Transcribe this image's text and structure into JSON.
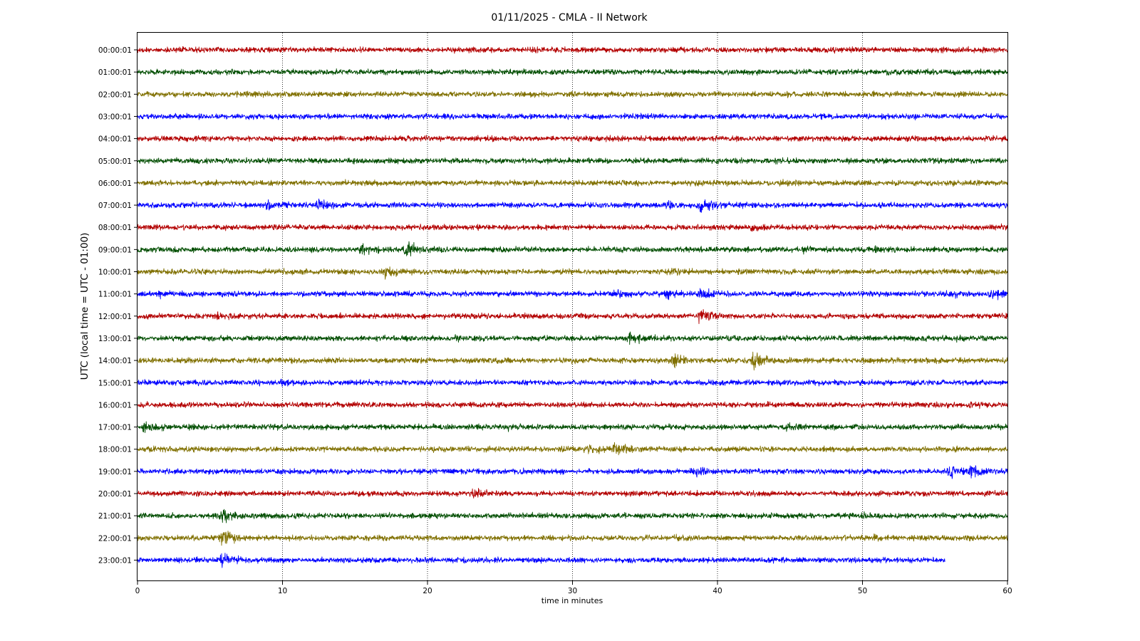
{
  "chart_data": {
    "type": "line",
    "title": "01/11/2025 - CMLA - II Network",
    "xlabel": "time in minutes",
    "ylabel": "UTC (local time = UTC - 01:00)",
    "xlim": [
      0,
      60
    ],
    "xticks": [
      0,
      10,
      20,
      30,
      40,
      50,
      60
    ],
    "grid": "vertical dotted lines at each 10 minutes",
    "trace_colors": [
      "#b30000",
      "#004d00",
      "#807000",
      "#0000ff"
    ],
    "series": [
      {
        "label": "00:00:01",
        "x_end": 60,
        "events": [
          {
            "x": 48,
            "amp": 1.3
          }
        ]
      },
      {
        "label": "01:00:01",
        "x_end": 60,
        "events": []
      },
      {
        "label": "02:00:01",
        "x_end": 60,
        "events": [
          {
            "x": 36,
            "amp": 1.2
          }
        ]
      },
      {
        "label": "03:00:01",
        "x_end": 60,
        "events": [
          {
            "x": 51,
            "amp": 1.3
          }
        ]
      },
      {
        "label": "04:00:01",
        "x_end": 60,
        "events": []
      },
      {
        "label": "05:00:01",
        "x_end": 60,
        "events": [
          {
            "x": 54.5,
            "amp": 1.3
          }
        ]
      },
      {
        "label": "06:00:01",
        "x_end": 60,
        "events": [
          {
            "x": 16.5,
            "amp": 1.2
          },
          {
            "x": 44,
            "amp": 1.3
          }
        ]
      },
      {
        "label": "07:00:01",
        "x_end": 60,
        "events": [
          {
            "x": 9,
            "amp": 2.4
          },
          {
            "x": 12.5,
            "amp": 2.8
          },
          {
            "x": 36.5,
            "amp": 2.0
          },
          {
            "x": 38.8,
            "amp": 3.4
          },
          {
            "x": 41.5,
            "amp": 1.8
          }
        ]
      },
      {
        "label": "08:00:01",
        "x_end": 60,
        "events": [
          {
            "x": 42.5,
            "amp": 1.8
          },
          {
            "x": 59,
            "amp": 1.4
          }
        ]
      },
      {
        "label": "09:00:01",
        "x_end": 60,
        "events": [
          {
            "x": 15.5,
            "amp": 2.4
          },
          {
            "x": 18.5,
            "amp": 4.0
          },
          {
            "x": 46,
            "amp": 1.8
          },
          {
            "x": 51,
            "amp": 1.8
          }
        ]
      },
      {
        "label": "10:00:01",
        "x_end": 60,
        "events": [
          {
            "x": 17,
            "amp": 3.2
          },
          {
            "x": 37,
            "amp": 1.8
          }
        ]
      },
      {
        "label": "11:00:01",
        "x_end": 60,
        "events": [
          {
            "x": 1.5,
            "amp": 1.8
          },
          {
            "x": 33,
            "amp": 2.0
          },
          {
            "x": 36.5,
            "amp": 2.4
          },
          {
            "x": 38.8,
            "amp": 2.6
          },
          {
            "x": 56,
            "amp": 2.0
          },
          {
            "x": 58.8,
            "amp": 3.0
          }
        ]
      },
      {
        "label": "12:00:01",
        "x_end": 60,
        "events": [
          {
            "x": 5.5,
            "amp": 2.2
          },
          {
            "x": 38.8,
            "amp": 3.0
          }
        ]
      },
      {
        "label": "13:00:01",
        "x_end": 60,
        "events": [
          {
            "x": 22,
            "amp": 1.8
          },
          {
            "x": 34,
            "amp": 3.6
          },
          {
            "x": 56.5,
            "amp": 1.5
          }
        ]
      },
      {
        "label": "14:00:01",
        "x_end": 60,
        "events": [
          {
            "x": 37,
            "amp": 3.0
          },
          {
            "x": 42.5,
            "amp": 3.8
          }
        ]
      },
      {
        "label": "15:00:01",
        "x_end": 60,
        "events": [
          {
            "x": 10,
            "amp": 1.6
          }
        ]
      },
      {
        "label": "16:00:01",
        "x_end": 60,
        "events": [
          {
            "x": 57.5,
            "amp": 1.6
          }
        ]
      },
      {
        "label": "17:00:01",
        "x_end": 60,
        "events": [
          {
            "x": 0.5,
            "amp": 3.0
          },
          {
            "x": 25.5,
            "amp": 1.5
          },
          {
            "x": 44.8,
            "amp": 2.4
          }
        ]
      },
      {
        "label": "18:00:01",
        "x_end": 60,
        "events": [
          {
            "x": 31,
            "amp": 2.4
          },
          {
            "x": 33,
            "amp": 3.6
          }
        ]
      },
      {
        "label": "19:00:01",
        "x_end": 60,
        "events": [
          {
            "x": 38.5,
            "amp": 1.8
          },
          {
            "x": 56,
            "amp": 3.0
          },
          {
            "x": 57.3,
            "amp": 3.4
          }
        ]
      },
      {
        "label": "20:00:01",
        "x_end": 60,
        "events": [
          {
            "x": 23.2,
            "amp": 2.6
          },
          {
            "x": 35,
            "amp": 1.3
          }
        ]
      },
      {
        "label": "21:00:01",
        "x_end": 60,
        "events": [
          {
            "x": 5.8,
            "amp": 3.5
          },
          {
            "x": 50,
            "amp": 1.5
          }
        ]
      },
      {
        "label": "22:00:01",
        "x_end": 60,
        "events": [
          {
            "x": 5.8,
            "amp": 4.8
          },
          {
            "x": 37,
            "amp": 1.3
          },
          {
            "x": 50.8,
            "amp": 1.5
          }
        ]
      },
      {
        "label": "23:00:01",
        "x_end": 55.7,
        "events": [
          {
            "x": 5.8,
            "amp": 3.2
          }
        ]
      }
    ]
  }
}
